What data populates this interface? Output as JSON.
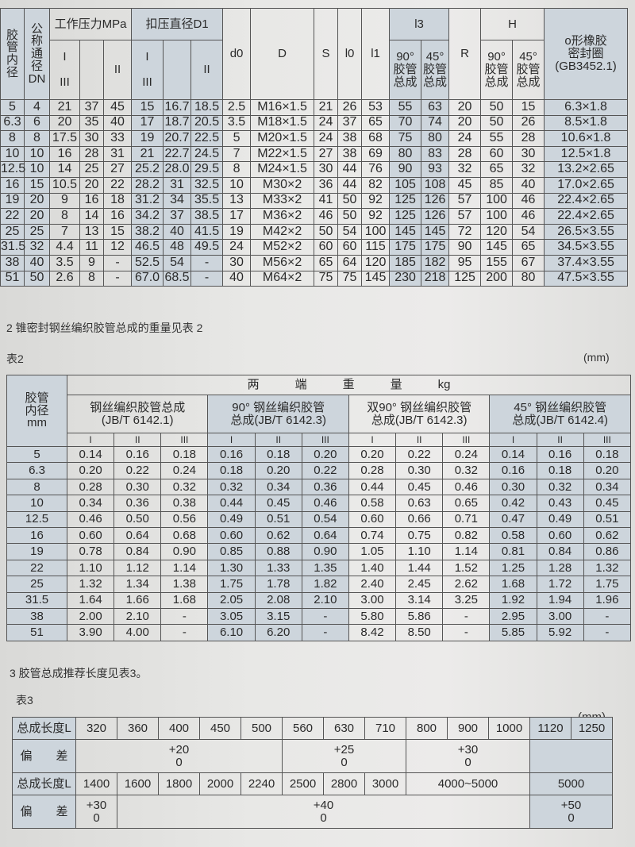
{
  "table1": {
    "headers": {
      "inner_diameter": "胶\n管\n内\n径",
      "nominal": "公\n称\n通\n径\nDN",
      "pressure": "工作压力MPa",
      "crimp": "扣压直径D1",
      "sub_i_iii": "I\n\nIII",
      "sub_ii": "II",
      "d0": "d0",
      "D": "D",
      "S": "S",
      "l0": "l0",
      "l1": "l1",
      "l3": "l3",
      "R": "R",
      "H": "H",
      "deg90": "90°\n胶管\n总成",
      "deg45": "45°\n胶管\n总成",
      "oring": "o形橡胶\n密封圈\n(GB3452.1)"
    },
    "rows": [
      [
        "5",
        "4",
        "21",
        "37",
        "45",
        "15",
        "16.7",
        "18.5",
        "2.5",
        "M16×1.5",
        "21",
        "26",
        "53",
        "55",
        "63",
        "20",
        "50",
        "15",
        "6.3×1.8"
      ],
      [
        "6.3",
        "6",
        "20",
        "35",
        "40",
        "17",
        "18.7",
        "20.5",
        "3.5",
        "M18×1.5",
        "24",
        "37",
        "65",
        "70",
        "74",
        "20",
        "50",
        "26",
        "8.5×1.8"
      ],
      [
        "8",
        "8",
        "17.5",
        "30",
        "33",
        "19",
        "20.7",
        "22.5",
        "5",
        "M20×1.5",
        "24",
        "38",
        "68",
        "75",
        "80",
        "24",
        "55",
        "28",
        "10.6×1.8"
      ],
      [
        "10",
        "10",
        "16",
        "28",
        "31",
        "21",
        "22.7",
        "24.5",
        "7",
        "M22×1.5",
        "27",
        "38",
        "69",
        "80",
        "83",
        "28",
        "60",
        "30",
        "12.5×1.8"
      ],
      [
        "12.5",
        "10",
        "14",
        "25",
        "27",
        "25.2",
        "28.0",
        "29.5",
        "8",
        "M24×1.5",
        "30",
        "44",
        "76",
        "90",
        "93",
        "32",
        "65",
        "32",
        "13.2×2.65"
      ],
      [
        "16",
        "15",
        "10.5",
        "20",
        "22",
        "28.2",
        "31",
        "32.5",
        "10",
        "M30×2",
        "36",
        "44",
        "82",
        "105",
        "108",
        "45",
        "85",
        "40",
        "17.0×2.65"
      ],
      [
        "19",
        "20",
        "9",
        "16",
        "18",
        "31.2",
        "34",
        "35.5",
        "13",
        "M33×2",
        "41",
        "50",
        "92",
        "125",
        "126",
        "57",
        "100",
        "46",
        "22.4×2.65"
      ],
      [
        "22",
        "20",
        "8",
        "14",
        "16",
        "34.2",
        "37",
        "38.5",
        "17",
        "M36×2",
        "46",
        "50",
        "92",
        "125",
        "126",
        "57",
        "100",
        "46",
        "22.4×2.65"
      ],
      [
        "25",
        "25",
        "7",
        "13",
        "15",
        "38.2",
        "40",
        "41.5",
        "19",
        "M42×2",
        "50",
        "54",
        "100",
        "145",
        "145",
        "72",
        "120",
        "54",
        "26.5×3.55"
      ],
      [
        "31.5",
        "32",
        "4.4",
        "11",
        "12",
        "46.5",
        "48",
        "49.5",
        "24",
        "M52×2",
        "60",
        "60",
        "115",
        "175",
        "175",
        "90",
        "145",
        "65",
        "34.5×3.55"
      ],
      [
        "38",
        "40",
        "3.5",
        "9",
        "-",
        "52.5",
        "54",
        "-",
        "30",
        "M56×2",
        "65",
        "64",
        "120",
        "185",
        "182",
        "95",
        "155",
        "67",
        "37.4×3.55"
      ],
      [
        "51",
        "50",
        "2.6",
        "8",
        "-",
        "67.0",
        "68.5",
        "-",
        "40",
        "M64×2",
        "75",
        "75",
        "145",
        "230",
        "218",
        "125",
        "200",
        "80",
        "47.5×3.55"
      ]
    ]
  },
  "section2": {
    "heading": "2 锥密封钢丝编织胶管总成的重量见表 2",
    "table_label": "表2",
    "unit": "(mm)"
  },
  "table2": {
    "headers": {
      "inner_diameter": "胶管\n内径\nmm",
      "weight": "两　　　端　　　重　　　量　　　kg",
      "groups": [
        "钢丝编织胶管总成\n(JB/T  6142.1)",
        "90°  钢丝编织胶管\n总成(JB/T  6142.3)",
        "双90°  钢丝编织胶管\n总成(JB/T  6142.3)",
        "45°  钢丝编织胶管\n总成(JB/T  6142.4)"
      ],
      "grades": [
        "I",
        "II",
        "III"
      ]
    },
    "rows": [
      [
        "5",
        "0.14",
        "0.16",
        "0.18",
        "0.16",
        "0.18",
        "0.20",
        "0.20",
        "0.22",
        "0.24",
        "0.14",
        "0.16",
        "0.18"
      ],
      [
        "6.3",
        "0.20",
        "0.22",
        "0.24",
        "0.18",
        "0.20",
        "0.22",
        "0.28",
        "0.30",
        "0.32",
        "0.16",
        "0.18",
        "0.20"
      ],
      [
        "8",
        "0.28",
        "0.30",
        "0.32",
        "0.32",
        "0.34",
        "0.36",
        "0.44",
        "0.45",
        "0.46",
        "0.30",
        "0.32",
        "0.34"
      ],
      [
        "10",
        "0.34",
        "0.36",
        "0.38",
        "0.44",
        "0.45",
        "0.46",
        "0.58",
        "0.63",
        "0.65",
        "0.42",
        "0.43",
        "0.45"
      ],
      [
        "12.5",
        "0.46",
        "0.50",
        "0.56",
        "0.49",
        "0.51",
        "0.54",
        "0.60",
        "0.66",
        "0.71",
        "0.47",
        "0.49",
        "0.51"
      ],
      [
        "16",
        "0.60",
        "0.64",
        "0.68",
        "0.60",
        "0.62",
        "0.64",
        "0.74",
        "0.75",
        "0.82",
        "0.58",
        "0.60",
        "0.62"
      ],
      [
        "19",
        "0.78",
        "0.84",
        "0.90",
        "0.85",
        "0.88",
        "0.90",
        "1.05",
        "1.10",
        "1.14",
        "0.81",
        "0.84",
        "0.86"
      ],
      [
        "22",
        "1.10",
        "1.12",
        "1.14",
        "1.30",
        "1.33",
        "1.35",
        "1.40",
        "1.44",
        "1.52",
        "1.25",
        "1.28",
        "1.32"
      ],
      [
        "25",
        "1.32",
        "1.34",
        "1.38",
        "1.75",
        "1.78",
        "1.82",
        "2.40",
        "2.45",
        "2.62",
        "1.68",
        "1.72",
        "1.75"
      ],
      [
        "31.5",
        "1.64",
        "1.66",
        "1.68",
        "2.05",
        "2.08",
        "2.10",
        "3.00",
        "3.14",
        "3.25",
        "1.92",
        "1.94",
        "1.96"
      ],
      [
        "38",
        "2.00",
        "2.10",
        "-",
        "3.05",
        "3.15",
        "-",
        "5.80",
        "5.86",
        "-",
        "2.95",
        "3.00",
        "-"
      ],
      [
        "51",
        "3.90",
        "4.00",
        "-",
        "6.10",
        "6.20",
        "-",
        "8.42",
        "8.50",
        "-",
        "5.85",
        "5.92",
        "-"
      ]
    ]
  },
  "section3": {
    "heading": "3 胶管总成推荐长度见表3。",
    "table_label": "表3",
    "unit": "(mm)"
  },
  "table3": {
    "length_label": "总成长度L",
    "tolerance_label": "偏　　差",
    "row1_lengths": [
      "320",
      "360",
      "400",
      "450",
      "500",
      "560",
      "630",
      "710",
      "800",
      "900",
      "1000",
      "1120",
      "1250"
    ],
    "row1_tolerances": [
      {
        "value": "+20\n0",
        "span": 5
      },
      {
        "value": "+25\n0",
        "span": 3
      },
      {
        "value": "+30\n0",
        "span": 3
      },
      {
        "value": "",
        "span": 2
      }
    ],
    "row2_lengths": [
      {
        "value": "1400",
        "span": 1
      },
      {
        "value": "1600",
        "span": 1
      },
      {
        "value": "1800",
        "span": 1
      },
      {
        "value": "2000",
        "span": 1
      },
      {
        "value": "2240",
        "span": 1
      },
      {
        "value": "2500",
        "span": 1
      },
      {
        "value": "2800",
        "span": 1
      },
      {
        "value": "3000",
        "span": 1
      },
      {
        "value": "4000~5000",
        "span": 3
      },
      {
        "value": "5000",
        "span": 2
      }
    ],
    "row2_tolerances": [
      {
        "value": "+30\n0",
        "span": 1
      },
      {
        "value": "+40\n0",
        "span": 10
      },
      {
        "value": "+50\n0",
        "span": 2
      }
    ]
  },
  "colors": {
    "page": "#e8e8e6",
    "header_shade": "#cdd5dc",
    "rule": "#555555"
  }
}
